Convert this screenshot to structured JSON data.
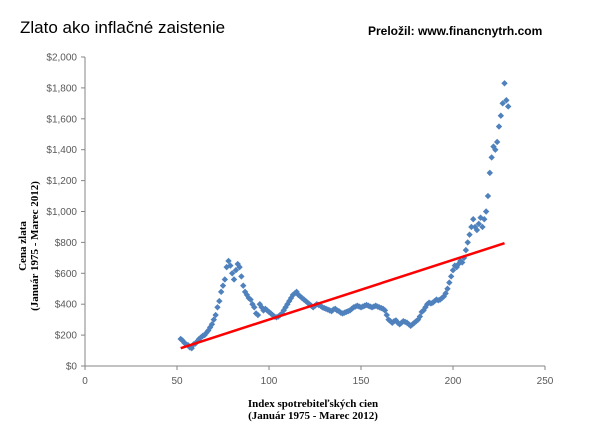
{
  "chart_data": {
    "type": "scatter",
    "title": "Zlato ako inflačné zaistenie",
    "credit": "Preložil: www.financnytrh.com",
    "xlabel": [
      "Index spotrebiteľských cien",
      "(Január 1975 - Marec 2012)"
    ],
    "ylabel": [
      "Cena zlata",
      "(Január 1975 - Marec 2012)"
    ],
    "xlim": [
      0,
      250
    ],
    "ylim": [
      0,
      2000
    ],
    "x_ticks": [
      {
        "value": 0,
        "label": "0"
      },
      {
        "value": 50,
        "label": "50"
      },
      {
        "value": 100,
        "label": "100"
      },
      {
        "value": 150,
        "label": "150"
      },
      {
        "value": 200,
        "label": "200"
      },
      {
        "value": 250,
        "label": "250"
      }
    ],
    "y_ticks": [
      {
        "value": 0,
        "label": "$0"
      },
      {
        "value": 200,
        "label": "$200"
      },
      {
        "value": 400,
        "label": "$400"
      },
      {
        "value": 600,
        "label": "$600"
      },
      {
        "value": 800,
        "label": "$800"
      },
      {
        "value": 1000,
        "label": "$1,000"
      },
      {
        "value": 1200,
        "label": "$1,200"
      },
      {
        "value": 1400,
        "label": "$1,400"
      },
      {
        "value": 1600,
        "label": "$1,600"
      },
      {
        "value": 1800,
        "label": "$1,800"
      },
      {
        "value": 2000,
        "label": "$2,000"
      }
    ],
    "grid": false,
    "legend": "none",
    "colors": {
      "points": "#4f81bd",
      "trendline": "#ff0000",
      "axis": "#868686"
    },
    "series": [
      {
        "points": [
          [
            52,
            175
          ],
          [
            53,
            165
          ],
          [
            54,
            150
          ],
          [
            55,
            140
          ],
          [
            56,
            135
          ],
          [
            57,
            120
          ],
          [
            58,
            115
          ],
          [
            59,
            140
          ],
          [
            60,
            145
          ],
          [
            61,
            160
          ],
          [
            62,
            175
          ],
          [
            63,
            185
          ],
          [
            64,
            195
          ],
          [
            65,
            200
          ],
          [
            66,
            215
          ],
          [
            67,
            230
          ],
          [
            68,
            250
          ],
          [
            69,
            270
          ],
          [
            70,
            300
          ],
          [
            71,
            330
          ],
          [
            72,
            380
          ],
          [
            73,
            420
          ],
          [
            74,
            480
          ],
          [
            75,
            520
          ],
          [
            76,
            560
          ],
          [
            77,
            640
          ],
          [
            78,
            680
          ],
          [
            79,
            650
          ],
          [
            80,
            600
          ],
          [
            81,
            560
          ],
          [
            82,
            620
          ],
          [
            83,
            660
          ],
          [
            84,
            640
          ],
          [
            85,
            580
          ],
          [
            86,
            520
          ],
          [
            87,
            480
          ],
          [
            88,
            460
          ],
          [
            89,
            440
          ],
          [
            90,
            430
          ],
          [
            91,
            400
          ],
          [
            92,
            380
          ],
          [
            93,
            340
          ],
          [
            94,
            330
          ],
          [
            95,
            400
          ],
          [
            96,
            380
          ],
          [
            97,
            360
          ],
          [
            98,
            370
          ],
          [
            99,
            360
          ],
          [
            100,
            350
          ],
          [
            101,
            340
          ],
          [
            102,
            330
          ],
          [
            103,
            320
          ],
          [
            104,
            315
          ],
          [
            105,
            320
          ],
          [
            106,
            330
          ],
          [
            107,
            340
          ],
          [
            108,
            360
          ],
          [
            109,
            380
          ],
          [
            110,
            400
          ],
          [
            111,
            420
          ],
          [
            112,
            440
          ],
          [
            113,
            460
          ],
          [
            114,
            470
          ],
          [
            115,
            480
          ],
          [
            116,
            460
          ],
          [
            117,
            450
          ],
          [
            118,
            440
          ],
          [
            119,
            430
          ],
          [
            120,
            420
          ],
          [
            121,
            410
          ],
          [
            122,
            400
          ],
          [
            123,
            390
          ],
          [
            124,
            380
          ],
          [
            125,
            390
          ],
          [
            126,
            400
          ],
          [
            127,
            395
          ],
          [
            128,
            390
          ],
          [
            129,
            380
          ],
          [
            130,
            375
          ],
          [
            131,
            370
          ],
          [
            132,
            365
          ],
          [
            133,
            360
          ],
          [
            134,
            355
          ],
          [
            135,
            365
          ],
          [
            136,
            370
          ],
          [
            137,
            360
          ],
          [
            138,
            355
          ],
          [
            139,
            345
          ],
          [
            140,
            340
          ],
          [
            141,
            345
          ],
          [
            142,
            350
          ],
          [
            143,
            355
          ],
          [
            144,
            360
          ],
          [
            145,
            370
          ],
          [
            146,
            380
          ],
          [
            147,
            385
          ],
          [
            148,
            390
          ],
          [
            149,
            385
          ],
          [
            150,
            380
          ],
          [
            151,
            385
          ],
          [
            152,
            390
          ],
          [
            153,
            395
          ],
          [
            154,
            390
          ],
          [
            155,
            385
          ],
          [
            156,
            380
          ],
          [
            157,
            385
          ],
          [
            158,
            390
          ],
          [
            159,
            385
          ],
          [
            160,
            380
          ],
          [
            161,
            375
          ],
          [
            162,
            370
          ],
          [
            163,
            360
          ],
          [
            164,
            330
          ],
          [
            165,
            300
          ],
          [
            166,
            290
          ],
          [
            167,
            280
          ],
          [
            168,
            290
          ],
          [
            169,
            295
          ],
          [
            170,
            280
          ],
          [
            171,
            270
          ],
          [
            172,
            280
          ],
          [
            173,
            290
          ],
          [
            174,
            285
          ],
          [
            175,
            280
          ],
          [
            176,
            270
          ],
          [
            177,
            260
          ],
          [
            178,
            270
          ],
          [
            179,
            280
          ],
          [
            180,
            290
          ],
          [
            181,
            300
          ],
          [
            182,
            320
          ],
          [
            183,
            350
          ],
          [
            184,
            360
          ],
          [
            185,
            380
          ],
          [
            186,
            400
          ],
          [
            187,
            410
          ],
          [
            188,
            405
          ],
          [
            189,
            410
          ],
          [
            190,
            420
          ],
          [
            191,
            430
          ],
          [
            192,
            425
          ],
          [
            193,
            430
          ],
          [
            194,
            440
          ],
          [
            195,
            450
          ],
          [
            196,
            470
          ],
          [
            197,
            500
          ],
          [
            198,
            540
          ],
          [
            199,
            580
          ],
          [
            200,
            620
          ],
          [
            201,
            650
          ],
          [
            202,
            640
          ],
          [
            203,
            660
          ],
          [
            204,
            680
          ],
          [
            205,
            670
          ],
          [
            206,
            700
          ],
          [
            207,
            750
          ],
          [
            208,
            800
          ],
          [
            209,
            850
          ],
          [
            210,
            900
          ],
          [
            211,
            950
          ],
          [
            212,
            900
          ],
          [
            213,
            880
          ],
          [
            214,
            920
          ],
          [
            215,
            960
          ],
          [
            216,
            900
          ],
          [
            217,
            950
          ],
          [
            218,
            1000
          ],
          [
            219,
            1100
          ],
          [
            220,
            1250
          ],
          [
            221,
            1350
          ],
          [
            222,
            1420
          ],
          [
            223,
            1400
          ],
          [
            224,
            1450
          ],
          [
            225,
            1550
          ],
          [
            226,
            1620
          ],
          [
            227,
            1700
          ],
          [
            228,
            1830
          ],
          [
            229,
            1720
          ],
          [
            230,
            1680
          ]
        ]
      }
    ],
    "trendline": {
      "x1": 52,
      "y1": 115,
      "x2": 228,
      "y2": 795
    }
  }
}
